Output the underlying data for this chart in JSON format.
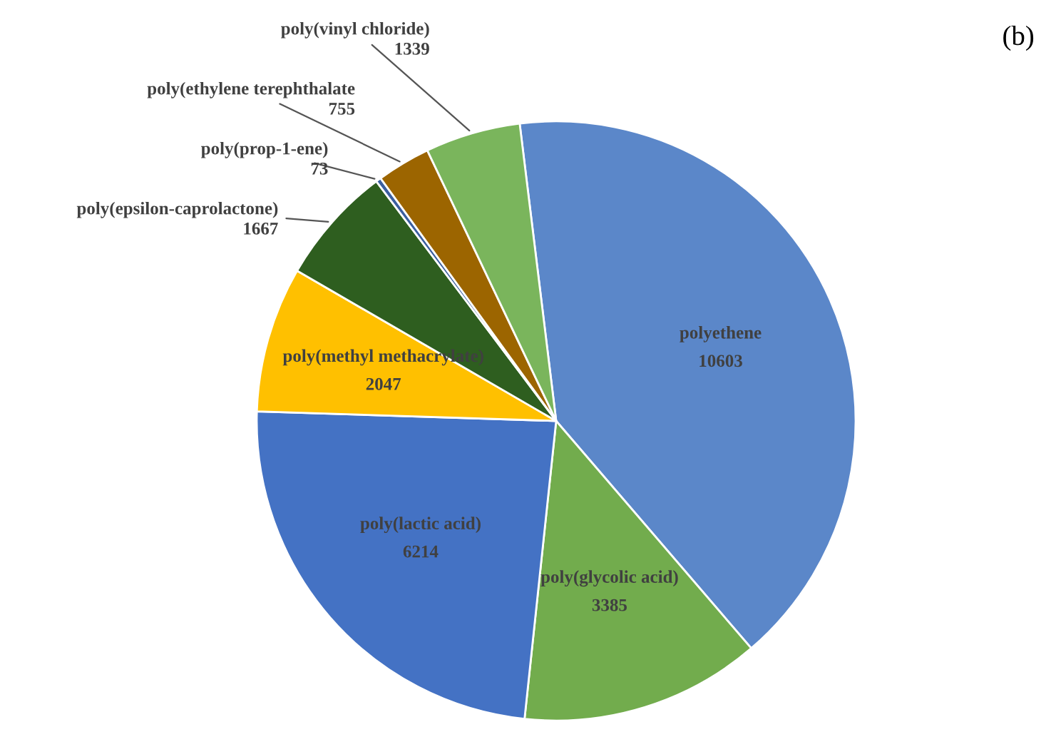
{
  "chart_data": {
    "type": "pie",
    "categories": [
      "polyethene",
      "poly(glycolic acid)",
      "poly(lactic acid)",
      "poly(methyl methacrylate)",
      "poly(epsilon-caprolactone)",
      "poly(prop-1-ene)",
      "poly(ethylene terephthalate",
      "poly(vinyl chloride)"
    ],
    "values": [
      10603,
      3385,
      6214,
      2047,
      1667,
      73,
      755,
      1339
    ],
    "colors": [
      "#5b87c9",
      "#72ac4d",
      "#4472c4",
      "#ffc000",
      "#2e5e1f",
      "#3b5fa0",
      "#9c6500",
      "#7ab55c"
    ],
    "data_labels": true,
    "annotations": [
      "(b)"
    ]
  }
}
